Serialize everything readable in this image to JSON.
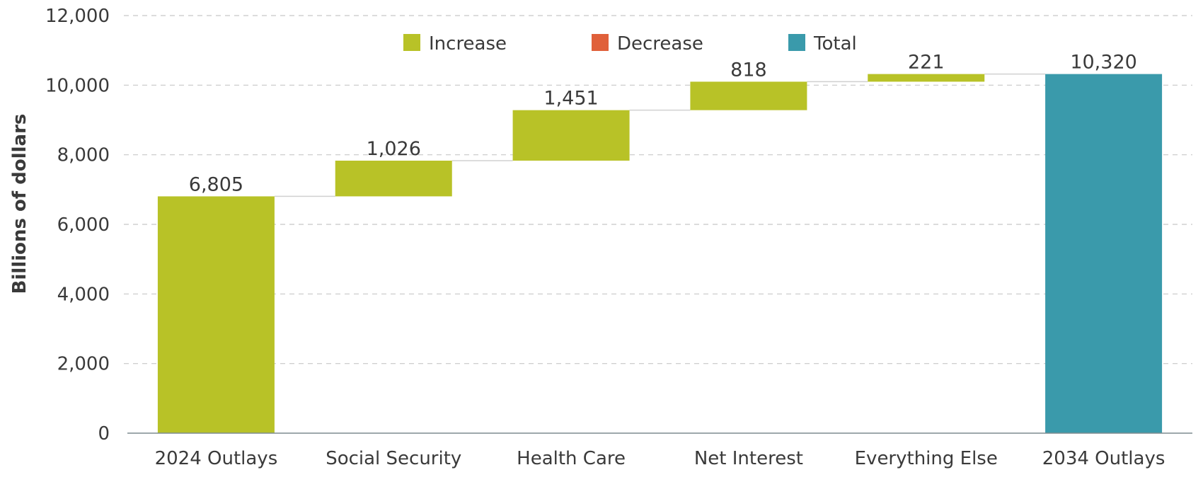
{
  "chart_data": {
    "type": "bar",
    "subtype": "waterfall",
    "title": "",
    "xlabel": "",
    "ylabel": "Billions of dollars",
    "ylim": [
      0,
      12000
    ],
    "yticks": [
      0,
      2000,
      4000,
      6000,
      8000,
      10000,
      12000
    ],
    "ytick_labels": [
      "0",
      "2,000",
      "4,000",
      "6,000",
      "8,000",
      "10,000",
      "12,000"
    ],
    "grid": true,
    "legend_position": "top",
    "legend": [
      {
        "label": "Increase",
        "color": "#b8c227"
      },
      {
        "label": "Decrease",
        "color": "#e0603a"
      },
      {
        "label": "Total",
        "color": "#3a9aab"
      }
    ],
    "categories": [
      "2024 Outlays",
      "Social Security",
      "Health Care",
      "Net Interest",
      "Everything Else",
      "2034 Outlays"
    ],
    "bars": [
      {
        "category": "2024 Outlays",
        "kind": "Increase",
        "start": 0,
        "end": 6805,
        "value": 6805,
        "label": "6,805"
      },
      {
        "category": "Social Security",
        "kind": "Increase",
        "start": 6805,
        "end": 7831,
        "value": 1026,
        "label": "1,026"
      },
      {
        "category": "Health Care",
        "kind": "Increase",
        "start": 7831,
        "end": 9282,
        "value": 1451,
        "label": "1,451"
      },
      {
        "category": "Net Interest",
        "kind": "Increase",
        "start": 9282,
        "end": 10100,
        "value": 818,
        "label": "818"
      },
      {
        "category": "Everything Else",
        "kind": "Increase",
        "start": 10100,
        "end": 10320,
        "value": 221,
        "label": "221"
      },
      {
        "category": "2034 Outlays",
        "kind": "Total",
        "start": 0,
        "end": 10320,
        "value": 10320,
        "label": "10,320"
      }
    ]
  }
}
